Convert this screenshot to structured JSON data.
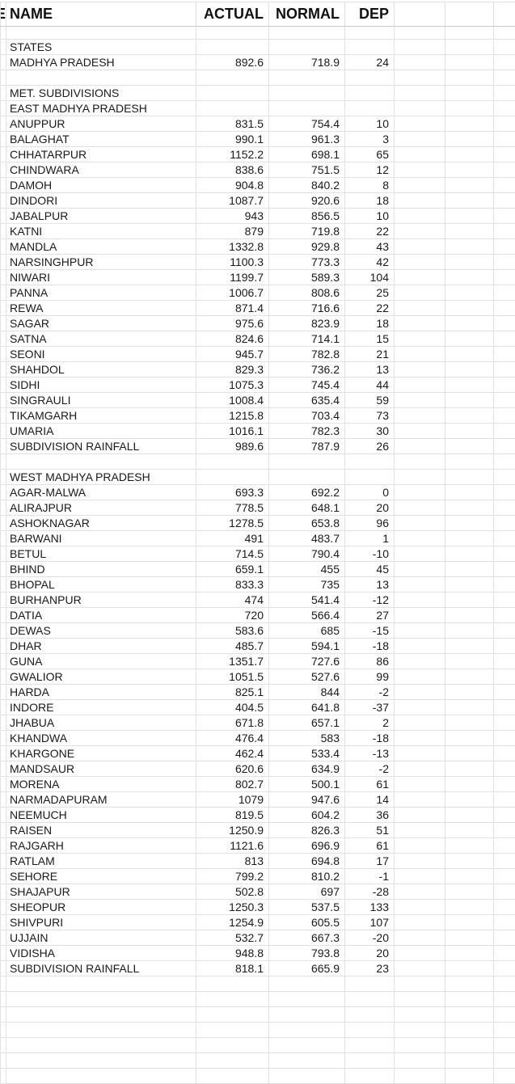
{
  "sheet": {
    "clipped_left_column_text": "E",
    "columns": {
      "name": "NAME",
      "actual": "ACTUAL",
      "normal": "NORMAL",
      "dep": "DEP",
      "extra1": "",
      "extra2": "",
      "extra3": ""
    },
    "rows": [
      {
        "name": "",
        "actual": "",
        "normal": "",
        "dep": ""
      },
      {
        "name": "STATES",
        "actual": "",
        "normal": "",
        "dep": ""
      },
      {
        "name": "MADHYA PRADESH",
        "actual": "892.6",
        "normal": "718.9",
        "dep": "24"
      },
      {
        "name": "",
        "actual": "",
        "normal": "",
        "dep": ""
      },
      {
        "name": "MET. SUBDIVISIONS",
        "actual": "",
        "normal": "",
        "dep": ""
      },
      {
        "name": "EAST MADHYA PRADESH",
        "actual": "",
        "normal": "",
        "dep": ""
      },
      {
        "name": "ANUPPUR",
        "actual": "831.5",
        "normal": "754.4",
        "dep": "10"
      },
      {
        "name": "BALAGHAT",
        "actual": "990.1",
        "normal": "961.3",
        "dep": "3"
      },
      {
        "name": "CHHATARPUR",
        "actual": "1152.2",
        "normal": "698.1",
        "dep": "65"
      },
      {
        "name": "CHINDWARA",
        "actual": "838.6",
        "normal": "751.5",
        "dep": "12"
      },
      {
        "name": "DAMOH",
        "actual": "904.8",
        "normal": "840.2",
        "dep": "8"
      },
      {
        "name": "DINDORI",
        "actual": "1087.7",
        "normal": "920.6",
        "dep": "18"
      },
      {
        "name": "JABALPUR",
        "actual": "943",
        "normal": "856.5",
        "dep": "10"
      },
      {
        "name": "KATNI",
        "actual": "879",
        "normal": "719.8",
        "dep": "22"
      },
      {
        "name": "MANDLA",
        "actual": "1332.8",
        "normal": "929.8",
        "dep": "43"
      },
      {
        "name": "NARSINGHPUR",
        "actual": "1100.3",
        "normal": "773.3",
        "dep": "42"
      },
      {
        "name": "NIWARI",
        "actual": "1199.7",
        "normal": "589.3",
        "dep": "104"
      },
      {
        "name": "PANNA",
        "actual": "1006.7",
        "normal": "808.6",
        "dep": "25"
      },
      {
        "name": "REWA",
        "actual": "871.4",
        "normal": "716.6",
        "dep": "22"
      },
      {
        "name": "SAGAR",
        "actual": "975.6",
        "normal": "823.9",
        "dep": "18"
      },
      {
        "name": "SATNA",
        "actual": "824.6",
        "normal": "714.1",
        "dep": "15"
      },
      {
        "name": "SEONI",
        "actual": "945.7",
        "normal": "782.8",
        "dep": "21"
      },
      {
        "name": "SHAHDOL",
        "actual": "829.3",
        "normal": "736.2",
        "dep": "13"
      },
      {
        "name": "SIDHI",
        "actual": "1075.3",
        "normal": "745.4",
        "dep": "44"
      },
      {
        "name": "SINGRAULI",
        "actual": "1008.4",
        "normal": "635.4",
        "dep": "59"
      },
      {
        "name": "TIKAMGARH",
        "actual": "1215.8",
        "normal": "703.4",
        "dep": "73"
      },
      {
        "name": "UMARIA",
        "actual": "1016.1",
        "normal": "782.3",
        "dep": "30"
      },
      {
        "name": "SUBDIVISION RAINFALL",
        "actual": "989.6",
        "normal": "787.9",
        "dep": "26"
      },
      {
        "name": "",
        "actual": "",
        "normal": "",
        "dep": ""
      },
      {
        "name": "WEST MADHYA PRADESH",
        "actual": "",
        "normal": "",
        "dep": ""
      },
      {
        "name": "AGAR-MALWA",
        "actual": "693.3",
        "normal": "692.2",
        "dep": "0"
      },
      {
        "name": "ALIRAJPUR",
        "actual": "778.5",
        "normal": "648.1",
        "dep": "20"
      },
      {
        "name": "ASHOKNAGAR",
        "actual": "1278.5",
        "normal": "653.8",
        "dep": "96"
      },
      {
        "name": "BARWANI",
        "actual": "491",
        "normal": "483.7",
        "dep": "1"
      },
      {
        "name": "BETUL",
        "actual": "714.5",
        "normal": "790.4",
        "dep": "-10"
      },
      {
        "name": "BHIND",
        "actual": "659.1",
        "normal": "455",
        "dep": "45"
      },
      {
        "name": "BHOPAL",
        "actual": "833.3",
        "normal": "735",
        "dep": "13"
      },
      {
        "name": "BURHANPUR",
        "actual": "474",
        "normal": "541.4",
        "dep": "-12"
      },
      {
        "name": "DATIA",
        "actual": "720",
        "normal": "566.4",
        "dep": "27"
      },
      {
        "name": "DEWAS",
        "actual": "583.6",
        "normal": "685",
        "dep": "-15"
      },
      {
        "name": "DHAR",
        "actual": "485.7",
        "normal": "594.1",
        "dep": "-18"
      },
      {
        "name": "GUNA",
        "actual": "1351.7",
        "normal": "727.6",
        "dep": "86"
      },
      {
        "name": "GWALIOR",
        "actual": "1051.5",
        "normal": "527.6",
        "dep": "99"
      },
      {
        "name": "HARDA",
        "actual": "825.1",
        "normal": "844",
        "dep": "-2"
      },
      {
        "name": "INDORE",
        "actual": "404.5",
        "normal": "641.8",
        "dep": "-37"
      },
      {
        "name": "JHABUA",
        "actual": "671.8",
        "normal": "657.1",
        "dep": "2"
      },
      {
        "name": "KHANDWA",
        "actual": "476.4",
        "normal": "583",
        "dep": "-18"
      },
      {
        "name": "KHARGONE",
        "actual": "462.4",
        "normal": "533.4",
        "dep": "-13"
      },
      {
        "name": "MANDSAUR",
        "actual": "620.6",
        "normal": "634.9",
        "dep": "-2"
      },
      {
        "name": "MORENA",
        "actual": "802.7",
        "normal": "500.1",
        "dep": "61"
      },
      {
        "name": "NARMADAPURAM",
        "actual": "1079",
        "normal": "947.6",
        "dep": "14"
      },
      {
        "name": "NEEMUCH",
        "actual": "819.5",
        "normal": "604.2",
        "dep": "36"
      },
      {
        "name": "RAISEN",
        "actual": "1250.9",
        "normal": "826.3",
        "dep": "51"
      },
      {
        "name": "RAJGARH",
        "actual": "1121.6",
        "normal": "696.9",
        "dep": "61"
      },
      {
        "name": "RATLAM",
        "actual": "813",
        "normal": "694.8",
        "dep": "17"
      },
      {
        "name": "SEHORE",
        "actual": "799.2",
        "normal": "810.2",
        "dep": "-1"
      },
      {
        "name": "SHAJAPUR",
        "actual": "502.8",
        "normal": "697",
        "dep": "-28"
      },
      {
        "name": "SHEOPUR",
        "actual": "1250.3",
        "normal": "537.5",
        "dep": "133"
      },
      {
        "name": "SHIVPURI",
        "actual": "1254.9",
        "normal": "605.5",
        "dep": "107"
      },
      {
        "name": "UJJAIN",
        "actual": "532.7",
        "normal": "667.3",
        "dep": "-20"
      },
      {
        "name": "VIDISHA",
        "actual": "948.8",
        "normal": "793.8",
        "dep": "20"
      },
      {
        "name": "SUBDIVISION RAINFALL",
        "actual": "818.1",
        "normal": "665.9",
        "dep": "23"
      },
      {
        "name": "",
        "actual": "",
        "normal": "",
        "dep": ""
      },
      {
        "name": "",
        "actual": "",
        "normal": "",
        "dep": ""
      },
      {
        "name": "",
        "actual": "",
        "normal": "",
        "dep": ""
      },
      {
        "name": "",
        "actual": "",
        "normal": "",
        "dep": ""
      },
      {
        "name": "",
        "actual": "",
        "normal": "",
        "dep": ""
      },
      {
        "name": "",
        "actual": "",
        "normal": "",
        "dep": ""
      },
      {
        "name": "",
        "actual": "",
        "normal": "",
        "dep": ""
      }
    ],
    "colors": {
      "gridline": "#e2e2e2",
      "header_divider": "#c9c9c9",
      "text": "#1a1a1a",
      "background": "#ffffff"
    }
  }
}
